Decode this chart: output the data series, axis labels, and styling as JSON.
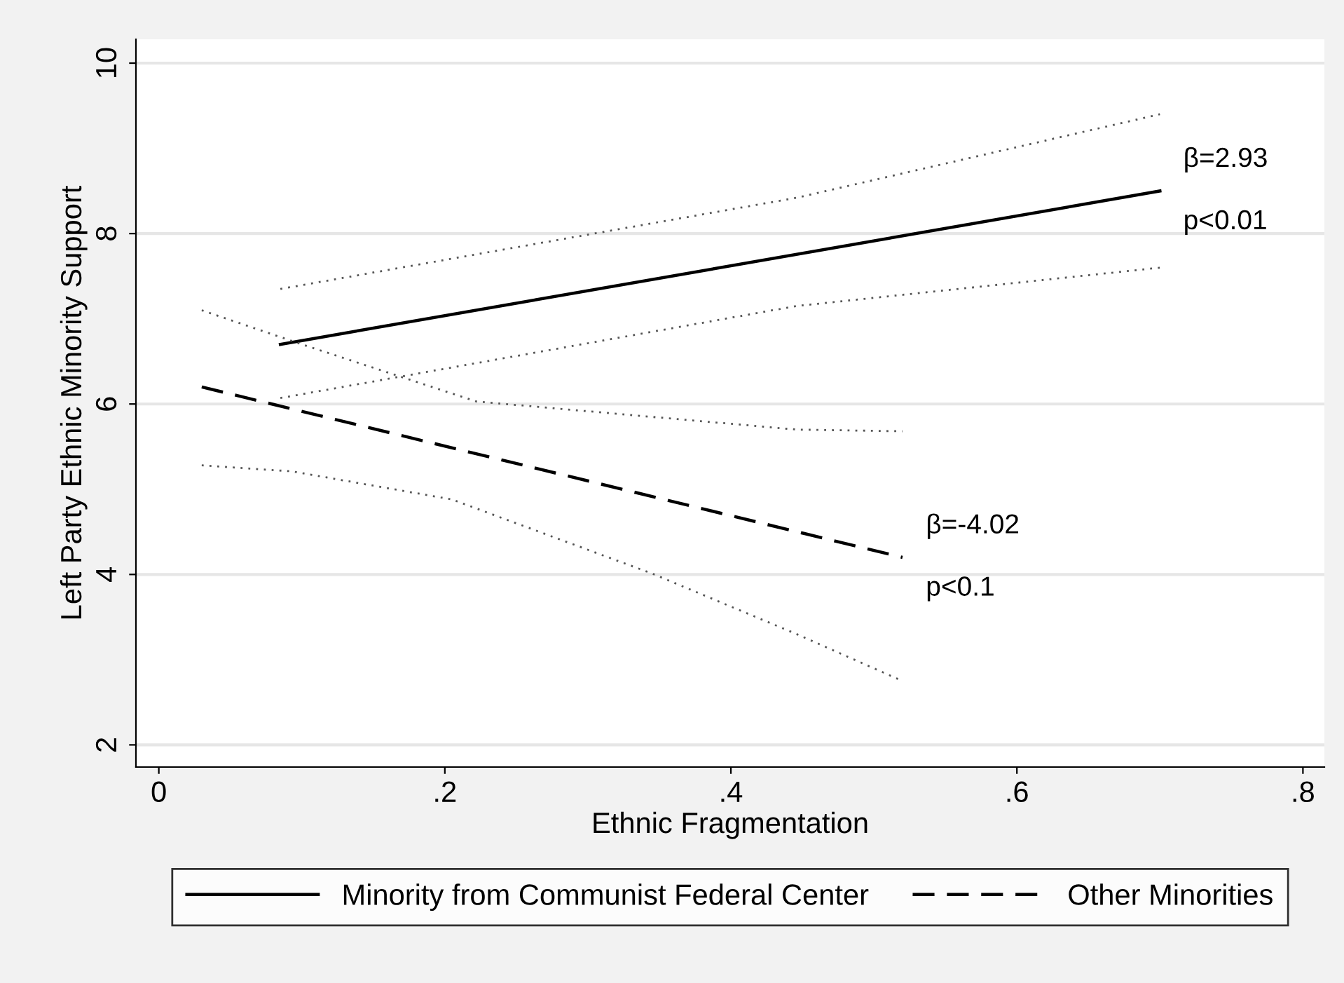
{
  "chart_data": {
    "type": "line",
    "xlabel": "Ethnic Fragmentation",
    "ylabel": "Left Party Ethnic Minority Support",
    "xlim": [
      -0.016,
      0.815
    ],
    "ylim": [
      1.74,
      10.28
    ],
    "xticks": [
      0,
      {
        "value": 0.2,
        "label": ".2"
      },
      {
        "value": 0.4,
        "label": ".4"
      },
      {
        "value": 0.6,
        "label": ".6"
      },
      {
        "value": 0.8,
        "label": ".8"
      }
    ],
    "yticks": [
      2,
      4,
      6,
      8,
      10
    ],
    "grid": "y",
    "legend": "bottom",
    "marker": "none",
    "series": [
      {
        "name": "Minority from Communist Federal Center",
        "color": "#000000",
        "line_style": "solid",
        "x": [
          0.085,
          0.7
        ],
        "values": [
          6.7,
          8.5
        ]
      },
      {
        "name": "Other Minorities",
        "color": "#000000",
        "line_style": "dashed",
        "x": [
          0.03,
          0.52
        ],
        "values": [
          6.2,
          4.2
        ]
      },
      {
        "color": "#555555",
        "line_style": "dotted",
        "x": [
          0.085,
          0.446,
          0.7
        ],
        "values": [
          7.35,
          8.42,
          9.4
        ]
      },
      {
        "color": "#555555",
        "line_style": "dotted",
        "x": [
          0.085,
          0.446,
          0.7
        ],
        "values": [
          6.07,
          7.15,
          7.6
        ]
      },
      {
        "color": "#555555",
        "line_style": "dotted",
        "x": [
          0.03,
          0.1,
          0.222,
          0.446,
          0.52
        ],
        "values": [
          7.1,
          6.7,
          6.03,
          5.7,
          5.68
        ]
      },
      {
        "color": "#555555",
        "line_style": "dotted",
        "x": [
          0.03,
          0.093,
          0.205,
          0.345,
          0.446,
          0.52
        ],
        "values": [
          5.28,
          5.21,
          4.88,
          4.01,
          3.3,
          2.75
        ]
      }
    ],
    "annotations": [
      "β=2.93",
      "p<0.01",
      "β=-4.02",
      "p<0.1"
    ]
  }
}
